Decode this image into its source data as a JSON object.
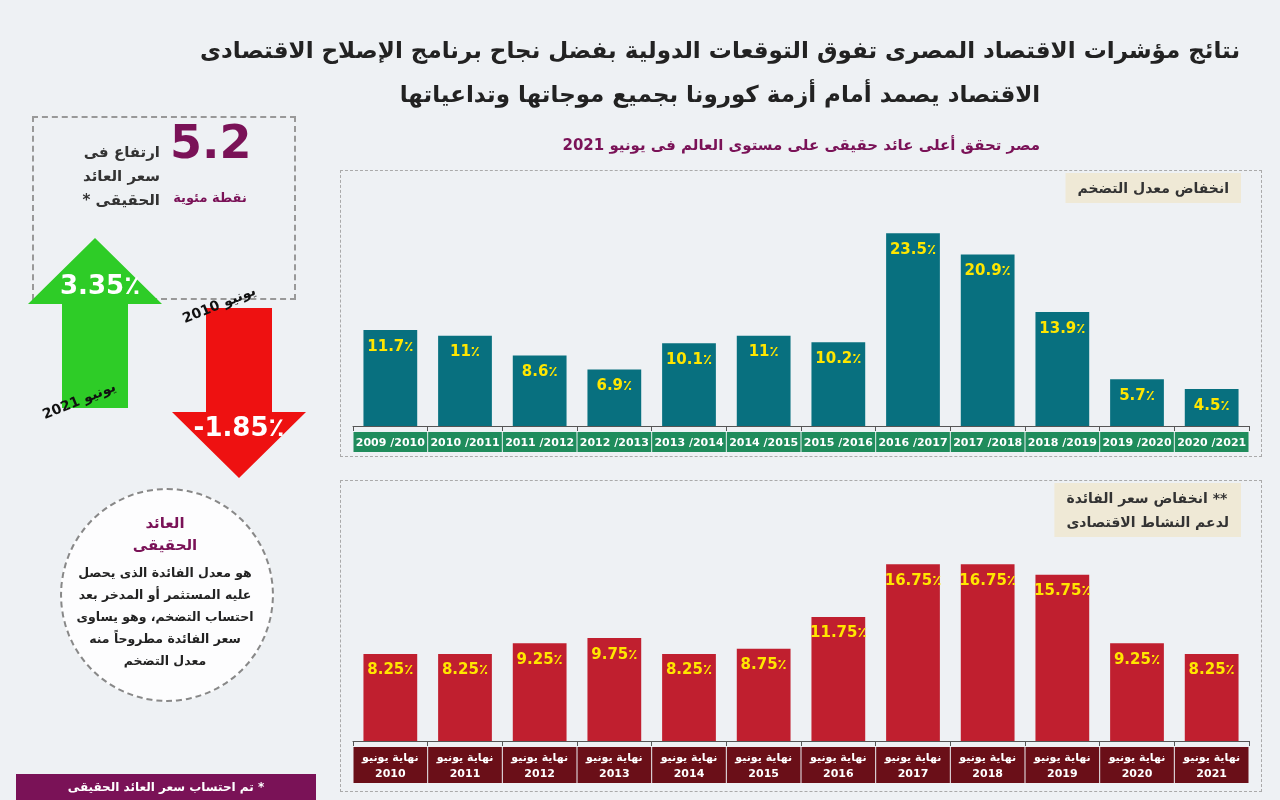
{
  "chart_data": [
    {
      "type": "other",
      "title": "نتائج مؤشرات الاقتصاد المصرى تفوق التوقعات الدولية بفضل نجاح برنامج الإصلاح الاقتصادى\nالاقتصاد يصمد أمام أزمة كورونا بجميع موجاتها وتداعياتها",
      "subtitle": "مصر تحقق أعلى عائد حقيقى على مستوى العالم فى يونيو 2021",
      "annotations": [
        "5.2",
        "نقطة مئوية",
        "ارتفاع فى\nسعر العائد\nالحقيقى *",
        "3.35٪",
        "يونيو 2021",
        "-1.85٪",
        "يونيو 2010",
        "العائد\nالحقيقى",
        "هو معدل الفائدة الذى يحصل عليه المستثمر أو المدخر بعد احتساب التضخم، وهو يساوى سعر الفائدة مطروحاً منه معدل التضخم",
        "* تم احتساب سعر العائد الحقيقى"
      ]
    },
    {
      "type": "bar",
      "title": "انخفاض معدل التضخم",
      "categories": [
        "2009 /2010",
        "2010 /2011",
        "2011 /2012",
        "2012 /2013",
        "2013 /2014",
        "2014 /2015",
        "2015 /2016",
        "2016 /2017",
        "2017 /2018",
        "2018 /2019",
        "2019 /2020",
        "2020 /2021"
      ],
      "series": [
        {
          "color": "#08707f",
          "values": [
            11.7,
            11,
            8.6,
            6.9,
            10.1,
            11,
            10.2,
            23.5,
            20.9,
            13.9,
            5.7,
            4.5
          ],
          "value_labels": [
            "11.7٪",
            "11٪",
            "8.6٪",
            "6.9٪",
            "10.1٪",
            "11٪",
            "10.2٪",
            "23.5٪",
            "20.9٪",
            "13.9٪",
            "5.7٪",
            "4.5٪"
          ]
        }
      ]
    },
    {
      "type": "bar",
      "title": "انخفاض سعر الفائدة **",
      "subtitle": "لدعم النشاط الاقتصادى",
      "categories": [
        "نهاية يونيو\n2010",
        "نهاية يونيو\n2011",
        "نهاية يونيو\n2012",
        "نهاية يونيو\n2013",
        "نهاية يونيو\n2014",
        "نهاية يونيو\n2015",
        "نهاية يونيو\n2016",
        "نهاية يونيو\n2017",
        "نهاية يونيو\n2018",
        "نهاية يونيو\n2019",
        "نهاية يونيو\n2020",
        "نهاية يونيو\n2021"
      ],
      "series": [
        {
          "color": "#c01f2f",
          "values": [
            8.25,
            8.25,
            9.25,
            9.75,
            8.25,
            8.75,
            11.75,
            16.75,
            16.75,
            15.75,
            9.25,
            8.25
          ],
          "value_labels": [
            "8.25٪",
            "8.25٪",
            "9.25٪",
            "9.75٪",
            "8.25٪",
            "8.75٪",
            "11.75٪",
            "16.75٪",
            "16.75٪",
            "15.75٪",
            "9.25٪",
            "8.25٪"
          ]
        }
      ]
    }
  ]
}
